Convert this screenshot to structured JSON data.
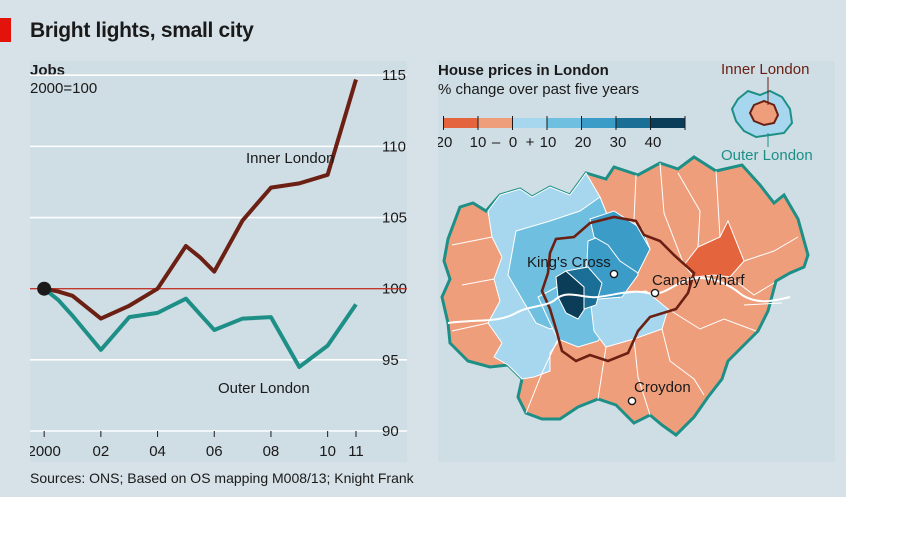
{
  "title": "Bright lights, small city",
  "source": "Sources: ONS; Based on OS mapping M008/13; Knight Frank",
  "colors": {
    "inner_line": "#6b2013",
    "outer_line": "#1d8f86",
    "baseline": "#c0392b",
    "panel": "#cfdde5",
    "frame": "#d6e1e8",
    "accent": "#e3120b"
  },
  "chart_data": [
    {
      "type": "line",
      "title": "Jobs",
      "subtitle": "2000=100",
      "x_tick_labels": [
        "2000",
        "02",
        "04",
        "06",
        "08",
        "10",
        "11"
      ],
      "x_tick_values": [
        2000,
        2002,
        2004,
        2006,
        2008,
        2010,
        2011
      ],
      "y_ticks": [
        90,
        95,
        100,
        105,
        110,
        115
      ],
      "ylim": [
        90,
        116
      ],
      "xlim": [
        1999.5,
        2011.6
      ],
      "grid": true,
      "baseline": 100,
      "x": [
        2000,
        2000.5,
        2001,
        2002,
        2003,
        2004,
        2004.5,
        2005,
        2005.5,
        2006,
        2007,
        2008,
        2009,
        2010,
        2011
      ],
      "series": [
        {
          "name": "Inner London",
          "values": [
            100,
            99.8,
            99.5,
            97.9,
            98.8,
            100,
            101.5,
            103,
            102.2,
            101.2,
            104.8,
            107.1,
            107.4,
            108,
            114.7
          ]
        },
        {
          "name": "Outer London",
          "values": [
            100,
            99.2,
            98.1,
            95.7,
            98.0,
            98.3,
            98.8,
            99.3,
            98.2,
            97.1,
            97.9,
            98.0,
            94.5,
            96.0,
            98.9
          ]
        }
      ]
    },
    {
      "type": "heatmap",
      "title": "House prices in London",
      "subtitle": "% change over past five years",
      "legend_tick_labels": [
        "20",
        "10",
        "–",
        "0",
        "+",
        "10",
        "20",
        "30",
        "40"
      ],
      "legend_bins": [
        {
          "range": [
            -20,
            -10
          ],
          "color": "#e4643e"
        },
        {
          "range": [
            -10,
            0
          ],
          "color": "#ef9e7c"
        },
        {
          "range": [
            0,
            10
          ],
          "color": "#a6d7ee"
        },
        {
          "range": [
            10,
            20
          ],
          "color": "#6fbfe0"
        },
        {
          "range": [
            20,
            30
          ],
          "color": "#3a9cc7"
        },
        {
          "range": [
            30,
            40
          ],
          "color": "#1b6f96"
        },
        {
          "range": [
            40,
            50
          ],
          "color": "#0c3d58"
        }
      ],
      "inset_labels": {
        "inner": "Inner London",
        "outer": "Outer London"
      },
      "places": [
        "King's Cross",
        "Canary Wharf",
        "Croydon"
      ]
    }
  ]
}
